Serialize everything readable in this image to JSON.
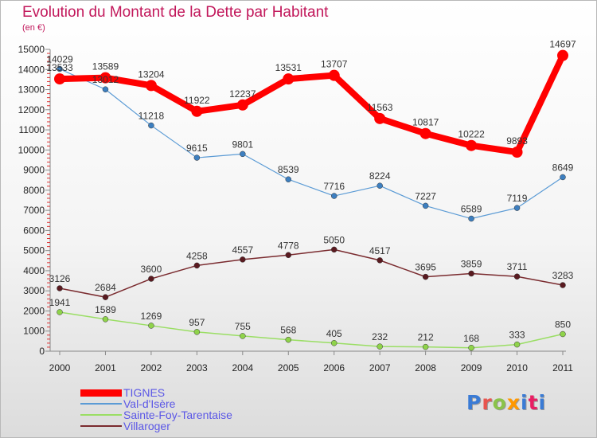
{
  "title": "Evolution du Montant de la Dette par Habitant",
  "subtitle": "(en €)",
  "logo_text": "Proxiti",
  "logo_colors": [
    "#3a7bd5",
    "#e8554e",
    "#8bc34a",
    "#ff9800",
    "#3a7bd5",
    "#e91e63",
    "#3a7bd5"
  ],
  "chart_data": {
    "type": "line",
    "x": [
      "2000",
      "2001",
      "2002",
      "2003",
      "2004",
      "2005",
      "2006",
      "2007",
      "2008",
      "2009",
      "2010",
      "2011"
    ],
    "ylim": [
      0,
      15000
    ],
    "yticks": [
      "0",
      "1000",
      "2000",
      "3000",
      "4000",
      "5000",
      "6000",
      "7000",
      "8000",
      "9000",
      "10000",
      "11000",
      "12000",
      "13000",
      "14000",
      "15000"
    ],
    "grid": false,
    "legend_position": "bottom-left",
    "series": [
      {
        "name": "TIGNES",
        "color": "#ff0000",
        "values": [
          13533,
          13589,
          13204,
          11922,
          12237,
          13531,
          13707,
          11563,
          10817,
          10222,
          9893,
          14697
        ]
      },
      {
        "name": "Val-d'Isère",
        "color": "#5b9bd5",
        "values": [
          14029,
          13012,
          11218,
          9615,
          9801,
          8539,
          7716,
          8224,
          7227,
          6589,
          7119,
          8649
        ]
      },
      {
        "name": "Sainte-Foy-Tarentaise",
        "color": "#9ade64",
        "values": [
          1941,
          1589,
          1269,
          957,
          755,
          568,
          405,
          232,
          212,
          168,
          333,
          850
        ]
      },
      {
        "name": "Villaroger",
        "color": "#7a2b2f",
        "values": [
          3126,
          2684,
          3600,
          4258,
          4557,
          4778,
          5050,
          4517,
          3695,
          3859,
          3711,
          3283
        ]
      }
    ]
  }
}
